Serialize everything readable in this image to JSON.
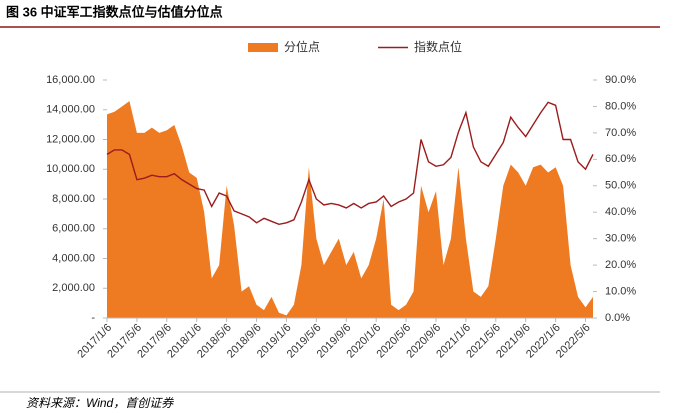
{
  "chart_data": {
    "type": "area_line",
    "title": "图 36 中证军工指数点位与估值分位点",
    "source": "资料来源：Wind，首创证券",
    "categories": [
      "2017/1/6",
      null,
      null,
      null,
      "2017/5/6",
      null,
      null,
      null,
      "2017/9/6",
      null,
      null,
      null,
      "2018/1/6",
      null,
      null,
      null,
      "2018/5/6",
      null,
      null,
      null,
      "2018/9/6",
      null,
      null,
      null,
      "2019/1/6",
      null,
      null,
      null,
      "2019/5/6",
      null,
      null,
      null,
      "2019/9/6",
      null,
      null,
      null,
      "2020/1/6",
      null,
      null,
      null,
      "2020/5/6",
      null,
      null,
      null,
      "2020/9/6",
      null,
      null,
      null,
      "2021/1/6",
      null,
      null,
      null,
      "2021/5/6",
      null,
      null,
      null,
      "2021/9/6",
      null,
      null,
      null,
      "2022/1/6",
      null,
      null,
      null,
      "2022/5/6",
      null
    ],
    "series": [
      {
        "name": "分位点",
        "type": "area",
        "axis": "y2",
        "color": "#ee7a22",
        "values": [
          77,
          78,
          80,
          82,
          70,
          70,
          72,
          70,
          71,
          73,
          65,
          55,
          53,
          40,
          15,
          20,
          50,
          35,
          10,
          12,
          5,
          3,
          8,
          2,
          1,
          5,
          20,
          57,
          30,
          20,
          25,
          30,
          20,
          25,
          15,
          20,
          30,
          45,
          5,
          3,
          5,
          10,
          50,
          40,
          48,
          20,
          30,
          57,
          30,
          10,
          8,
          12,
          30,
          50,
          58,
          55,
          50,
          57,
          58,
          55,
          57,
          50,
          20,
          8,
          4,
          8
        ]
      },
      {
        "name": "指数点位",
        "type": "line",
        "axis": "y",
        "color": "#9b1c1c",
        "values": [
          11000,
          11300,
          11300,
          11000,
          9300,
          9400,
          9600,
          9500,
          9500,
          9700,
          9300,
          9000,
          8700,
          8600,
          7500,
          8400,
          8200,
          7200,
          7000,
          6800,
          6400,
          6700,
          6500,
          6300,
          6400,
          6600,
          7800,
          9300,
          8000,
          7600,
          7700,
          7600,
          7400,
          7700,
          7400,
          7700,
          7800,
          8200,
          7500,
          7800,
          8000,
          8400,
          12000,
          10500,
          10200,
          10300,
          10800,
          12500,
          13800,
          11500,
          10500,
          10200,
          11000,
          11800,
          13500,
          12800,
          12200,
          13000,
          13800,
          14500,
          14300,
          12000,
          12000,
          10500,
          10000,
          11000
        ]
      }
    ],
    "ylim": [
      0,
      16000
    ],
    "yticks": [
      {
        "value": 0,
        "label": "-"
      },
      {
        "value": 2000,
        "label": "2,000.00"
      },
      {
        "value": 4000,
        "label": "4,000.00"
      },
      {
        "value": 6000,
        "label": "6,000.00"
      },
      {
        "value": 8000,
        "label": "8,000.00"
      },
      {
        "value": 10000,
        "label": "10,000.00"
      },
      {
        "value": 12000,
        "label": "12,000.00"
      },
      {
        "value": 14000,
        "label": "14,000.00"
      },
      {
        "value": 16000,
        "label": "16,000.00"
      }
    ],
    "y2lim": [
      0,
      90
    ],
    "y2ticks": [
      {
        "value": 0,
        "label": "0.0%"
      },
      {
        "value": 10,
        "label": "10.0%"
      },
      {
        "value": 20,
        "label": "20.0%"
      },
      {
        "value": 30,
        "label": "30.0%"
      },
      {
        "value": 40,
        "label": "40.0%"
      },
      {
        "value": 50,
        "label": "50.0%"
      },
      {
        "value": 60,
        "label": "60.0%"
      },
      {
        "value": 70,
        "label": "70.0%"
      },
      {
        "value": 80,
        "label": "80.0%"
      },
      {
        "value": 90,
        "label": "90.0%"
      }
    ],
    "legend": "top"
  }
}
